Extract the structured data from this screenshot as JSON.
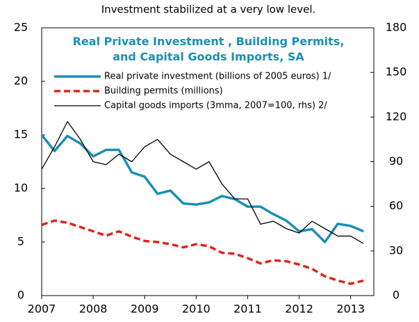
{
  "chart_data": {
    "type": "line",
    "title": "Investment stabilized at a very low level.",
    "subtitle": "Real Private Investment , Building Permits, and Capital Goods Imports, SA",
    "x": [
      2007,
      2007.25,
      2007.5,
      2007.75,
      2008,
      2008.25,
      2008.5,
      2008.75,
      2009,
      2009.25,
      2009.5,
      2009.75,
      2010,
      2010.25,
      2010.5,
      2010.75,
      2011,
      2011.25,
      2011.5,
      2011.75,
      2012,
      2012.25,
      2012.5,
      2012.75,
      2013,
      2013.25
    ],
    "series": [
      {
        "name": "Real private investment (billions of 2005 euros) 1/",
        "color": "#1a8fb5",
        "dash": false,
        "width": 3.5,
        "values": [
          15.0,
          13.5,
          14.9,
          14.2,
          13.0,
          13.6,
          13.6,
          11.5,
          11.1,
          9.5,
          9.8,
          8.6,
          8.5,
          8.7,
          9.3,
          9.0,
          8.3,
          8.3,
          7.6,
          7.0,
          6.0,
          6.2,
          5.0,
          6.7,
          6.5,
          6.0
        ]
      },
      {
        "name": "Building permits (millions)",
        "color": "#e2231a",
        "dash": true,
        "width": 3.5,
        "values": [
          6.6,
          7.0,
          6.8,
          6.4,
          6.0,
          5.6,
          6.0,
          5.5,
          5.1,
          5.0,
          4.8,
          4.5,
          4.8,
          4.6,
          4.0,
          3.9,
          3.5,
          3.0,
          3.3,
          3.2,
          2.9,
          2.5,
          1.8,
          1.4,
          1.1,
          1.4
        ]
      },
      {
        "name": "Capital goods imports (3mma, 2007=100, rhs) 2/",
        "color": "#000000",
        "dash": false,
        "width": 1.3,
        "axis": "y2",
        "values": [
          85,
          100,
          117,
          105,
          90,
          88,
          95,
          90,
          100,
          105,
          95,
          90,
          85,
          90,
          75,
          65,
          65,
          48,
          50,
          45,
          42,
          50,
          45,
          40,
          40,
          35
        ]
      }
    ],
    "xlim": [
      2007,
      2013.45
    ],
    "xticks": [
      2007,
      2008,
      2009,
      2010,
      2011,
      2012,
      2013
    ],
    "ylim": [
      0,
      25
    ],
    "yticks": [
      0,
      5,
      10,
      15,
      20,
      25
    ],
    "y2lim": [
      0,
      180
    ],
    "y2ticks": [
      0,
      30,
      60,
      90,
      120,
      150,
      180
    ]
  }
}
